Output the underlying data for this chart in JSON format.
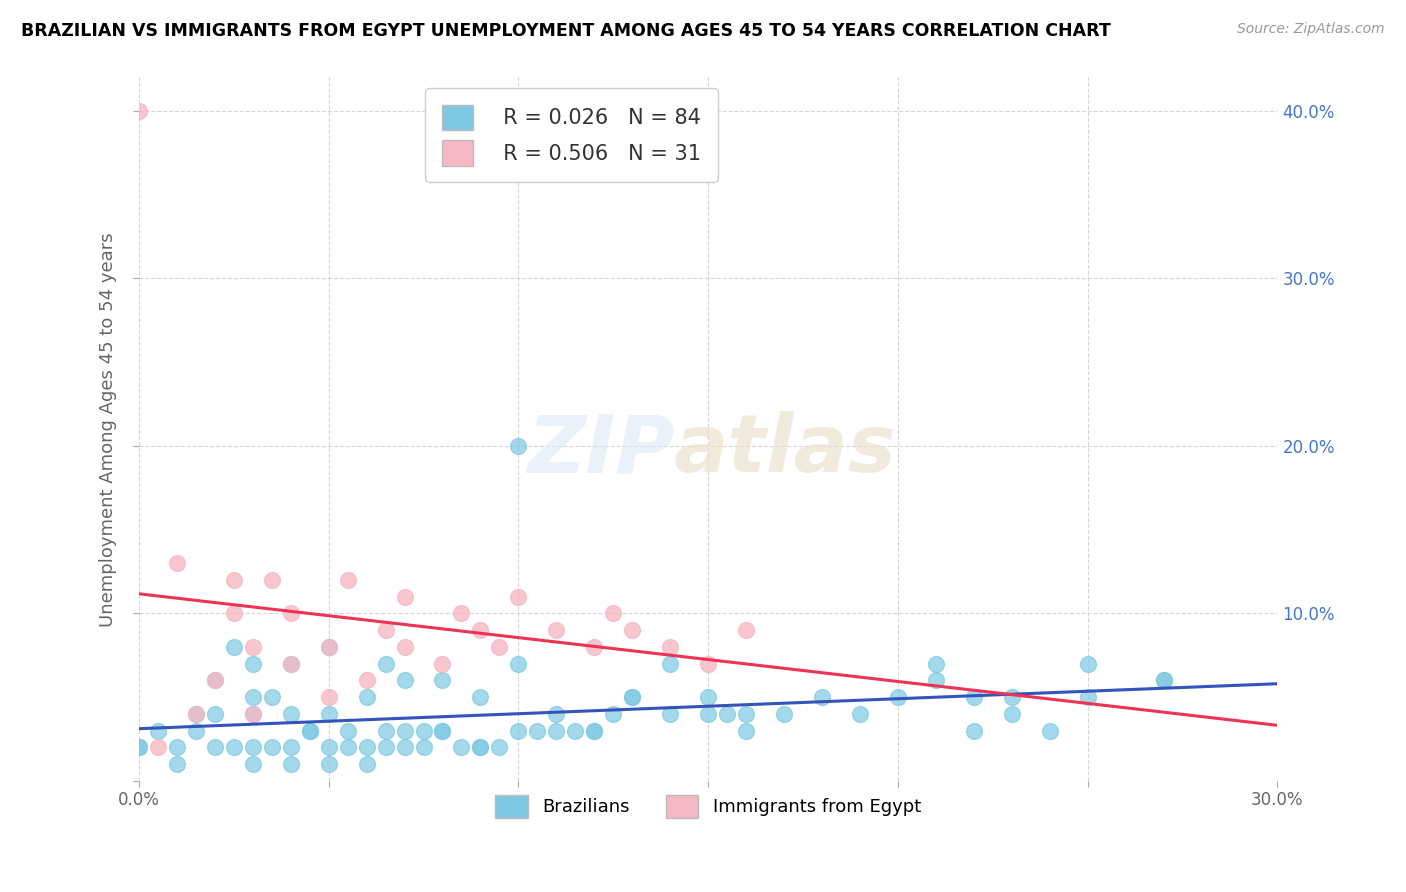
{
  "title": "BRAZILIAN VS IMMIGRANTS FROM EGYPT UNEMPLOYMENT AMONG AGES 45 TO 54 YEARS CORRELATION CHART",
  "source": "Source: ZipAtlas.com",
  "ylabel": "Unemployment Among Ages 45 to 54 years",
  "xmin": 0.0,
  "xmax": 0.3,
  "ymin": 0.0,
  "ymax": 0.42,
  "xticks": [
    0.0,
    0.05,
    0.1,
    0.15,
    0.2,
    0.25,
    0.3
  ],
  "yticks": [
    0.0,
    0.1,
    0.2,
    0.3,
    0.4
  ],
  "legend_label1": "Brazilians",
  "legend_label2": "Immigrants from Egypt",
  "R1": 0.026,
  "N1": 84,
  "R2": 0.506,
  "N2": 31,
  "color_brazil": "#7ec8e3",
  "color_egypt": "#f5b8c4",
  "color_brazil_line": "#3355bb",
  "color_egypt_line": "#ee3355",
  "brazil_x": [
    0.0,
    0.005,
    0.01,
    0.015,
    0.02,
    0.02,
    0.025,
    0.025,
    0.03,
    0.03,
    0.03,
    0.035,
    0.035,
    0.04,
    0.04,
    0.04,
    0.045,
    0.05,
    0.05,
    0.05,
    0.055,
    0.06,
    0.06,
    0.065,
    0.065,
    0.07,
    0.07,
    0.075,
    0.08,
    0.08,
    0.085,
    0.09,
    0.09,
    0.095,
    0.1,
    0.1,
    0.105,
    0.11,
    0.115,
    0.12,
    0.125,
    0.13,
    0.14,
    0.14,
    0.15,
    0.155,
    0.16,
    0.17,
    0.18,
    0.19,
    0.2,
    0.21,
    0.22,
    0.23,
    0.24,
    0.25,
    0.27,
    0.0,
    0.01,
    0.015,
    0.02,
    0.03,
    0.03,
    0.04,
    0.045,
    0.05,
    0.055,
    0.06,
    0.065,
    0.07,
    0.075,
    0.08,
    0.09,
    0.1,
    0.11,
    0.12,
    0.13,
    0.15,
    0.16,
    0.21,
    0.22,
    0.23,
    0.25,
    0.27
  ],
  "brazil_y": [
    0.02,
    0.03,
    0.01,
    0.03,
    0.04,
    0.06,
    0.02,
    0.08,
    0.01,
    0.04,
    0.07,
    0.02,
    0.05,
    0.01,
    0.04,
    0.07,
    0.03,
    0.01,
    0.04,
    0.08,
    0.02,
    0.01,
    0.05,
    0.02,
    0.07,
    0.02,
    0.06,
    0.02,
    0.03,
    0.06,
    0.02,
    0.02,
    0.05,
    0.02,
    0.03,
    0.07,
    0.03,
    0.04,
    0.03,
    0.03,
    0.04,
    0.05,
    0.04,
    0.07,
    0.05,
    0.04,
    0.03,
    0.04,
    0.05,
    0.04,
    0.05,
    0.06,
    0.03,
    0.04,
    0.03,
    0.05,
    0.06,
    0.02,
    0.02,
    0.04,
    0.02,
    0.02,
    0.05,
    0.02,
    0.03,
    0.02,
    0.03,
    0.02,
    0.03,
    0.03,
    0.03,
    0.03,
    0.02,
    0.2,
    0.03,
    0.03,
    0.05,
    0.04,
    0.04,
    0.07,
    0.05,
    0.05,
    0.07,
    0.06
  ],
  "egypt_x": [
    0.0,
    0.005,
    0.01,
    0.015,
    0.02,
    0.025,
    0.025,
    0.03,
    0.03,
    0.035,
    0.04,
    0.04,
    0.05,
    0.05,
    0.055,
    0.06,
    0.065,
    0.07,
    0.07,
    0.08,
    0.085,
    0.09,
    0.095,
    0.1,
    0.11,
    0.12,
    0.125,
    0.13,
    0.14,
    0.15,
    0.16
  ],
  "egypt_y": [
    0.4,
    0.02,
    0.13,
    0.04,
    0.06,
    0.1,
    0.12,
    0.04,
    0.08,
    0.12,
    0.07,
    0.1,
    0.05,
    0.08,
    0.12,
    0.06,
    0.09,
    0.08,
    0.11,
    0.07,
    0.1,
    0.09,
    0.08,
    0.11,
    0.09,
    0.08,
    0.1,
    0.09,
    0.08,
    0.07,
    0.09
  ]
}
